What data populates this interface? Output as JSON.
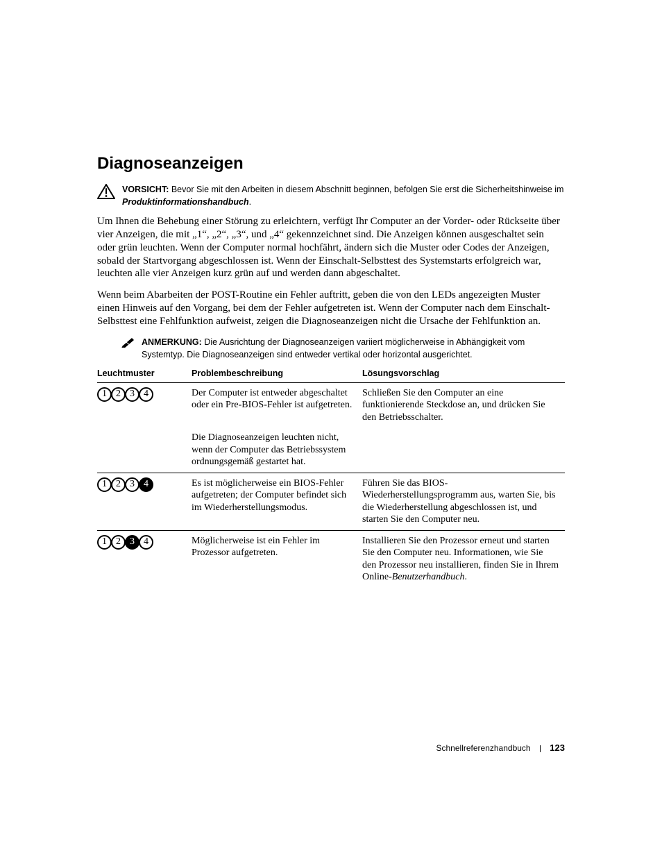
{
  "heading": "Diagnoseanzeigen",
  "caution": {
    "lead": "VORSICHT:",
    "text": " Bevor Sie mit den Arbeiten in diesem Abschnitt beginnen, befolgen Sie erst die Sicherheitshinweise im ",
    "emph": "Produktinformationshandbuch",
    "tail": "."
  },
  "para1": "Um Ihnen die Behebung einer Störung zu erleichtern, verfügt Ihr Computer an der Vorder- oder Rückseite über vier Anzeigen, die mit „1“, „2“, „3“, und „4“ gekennzeichnet sind. Die Anzeigen können ausgeschaltet sein oder grün leuchten. Wenn der Computer normal hochfährt, ändern sich die Muster oder Codes der Anzeigen, sobald der Startvorgang abgeschlossen ist. Wenn der Einschalt-Selbsttest des Systemstarts erfolgreich war, leuchten alle vier Anzeigen kurz grün auf und werden dann abgeschaltet.",
  "para2": "Wenn beim Abarbeiten der POST-Routine ein Fehler auftritt, geben die von den LEDs angezeigten Muster einen Hinweis auf den Vorgang, bei dem der Fehler aufgetreten ist. Wenn der Computer nach dem Einschalt-Selbsttest eine Fehlfunktion aufweist, zeigen die Diagnoseanzeigen nicht die Ursache der Fehlfunktion an.",
  "note": {
    "lead": "ANMERKUNG:",
    "text": " Die Ausrichtung der Diagnoseanzeigen variiert möglicherweise in Abhängigkeit vom Systemtyp. Die Diagnoseanzeigen sind entweder vertikal oder horizontal ausgerichtet."
  },
  "table": {
    "columns": [
      "Leuchtmuster",
      "Problembeschreibung",
      "Lösungsvorschlag"
    ],
    "rows": [
      {
        "leds": [
          "off",
          "off",
          "off",
          "off"
        ],
        "desc": "Der Computer ist entweder abgeschaltet oder ein Pre-BIOS-Fehler ist aufgetreten.",
        "desc2": "Die Diagnoseanzeigen leuchten nicht, wenn der Computer das Betriebssystem ordnungsgemäß gestartet hat.",
        "solution": "Schließen Sie den Computer an eine funktionierende Steckdose an, und drücken Sie den Betriebsschalter.",
        "rule": false
      },
      {
        "leds": [
          "off",
          "off",
          "off",
          "on"
        ],
        "desc": "Es ist möglicherweise ein BIOS-Fehler aufgetreten; der Computer befindet sich im Wiederherstellungsmodus.",
        "solution": "Führen Sie das BIOS-Wiederherstellungsprogramm aus, warten Sie, bis die Wiederherstellung abgeschlossen ist, und starten Sie den Computer neu.",
        "rule": true
      },
      {
        "leds": [
          "off",
          "off",
          "on",
          "off"
        ],
        "desc": "Möglicherweise ist ein Fehler im Prozessor aufgetreten.",
        "solution_html": "Installieren Sie den Prozessor erneut und starten Sie den Computer neu. Informationen, wie Sie den Prozessor neu installieren, finden Sie in Ihrem Online-<em>Benutzerhandbuch</em>.",
        "rule": true
      }
    ]
  },
  "footer": {
    "title": "Schnellreferenzhandbuch",
    "page": "123"
  },
  "icons": {
    "caution_stroke": "#000000",
    "note_fill": "#000000"
  }
}
